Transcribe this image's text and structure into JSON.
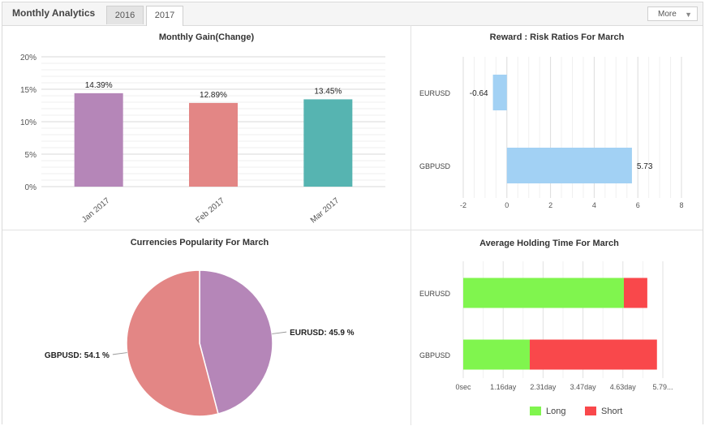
{
  "header": {
    "title": "Monthly Analytics",
    "tabs": [
      {
        "label": "2016",
        "active": false
      },
      {
        "label": "2017",
        "active": true
      }
    ],
    "more_label": "More"
  },
  "chart_data": [
    {
      "id": "monthly-gain",
      "type": "bar",
      "title": "Monthly Gain(Change)",
      "categories": [
        "Jan 2017",
        "Feb 2017",
        "Mar 2017"
      ],
      "values": [
        14.39,
        12.89,
        13.45
      ],
      "value_labels": [
        "14.39%",
        "12.89%",
        "13.45%"
      ],
      "colors": [
        "#b586b8",
        "#e38685",
        "#56b4b1"
      ],
      "ylim": [
        0,
        20
      ],
      "yticks": [
        "0%",
        "5%",
        "10%",
        "15%",
        "20%"
      ],
      "grid": true
    },
    {
      "id": "reward-risk",
      "type": "bar",
      "orientation": "horizontal",
      "title": "Reward : Risk Ratios For March",
      "categories": [
        "EURUSD",
        "GBPUSD"
      ],
      "values": [
        -0.64,
        5.73
      ],
      "value_labels": [
        "-0.64",
        "5.73"
      ],
      "color": "#a2d1f4",
      "xlim": [
        -2,
        8
      ],
      "xticks": [
        "-2",
        "0",
        "2",
        "4",
        "6",
        "8"
      ],
      "grid": true
    },
    {
      "id": "currency-popularity",
      "type": "pie",
      "title": "Currencies Popularity For March",
      "labels": [
        "EURUSD",
        "GBPUSD"
      ],
      "values": [
        45.9,
        54.1
      ],
      "slice_labels": [
        "EURUSD: 45.9 %",
        "GBPUSD: 54.1 %"
      ],
      "colors": [
        "#b586b8",
        "#e38685"
      ]
    },
    {
      "id": "holding-time",
      "type": "bar",
      "orientation": "horizontal",
      "stacked": true,
      "title": "Average Holding Time For March",
      "categories": [
        "EURUSD",
        "GBPUSD"
      ],
      "series": [
        {
          "name": "Long",
          "values": [
            4.66,
            1.93
          ],
          "color": "#80f54e"
        },
        {
          "name": "Short",
          "values": [
            0.68,
            3.69
          ],
          "color": "#f9484b"
        }
      ],
      "xlim": [
        0,
        5.79
      ],
      "xticks": [
        "0sec",
        "1.16day",
        "2.31day",
        "3.47day",
        "4.63day",
        "5.79..."
      ],
      "legend": "bottom",
      "grid": true
    }
  ]
}
